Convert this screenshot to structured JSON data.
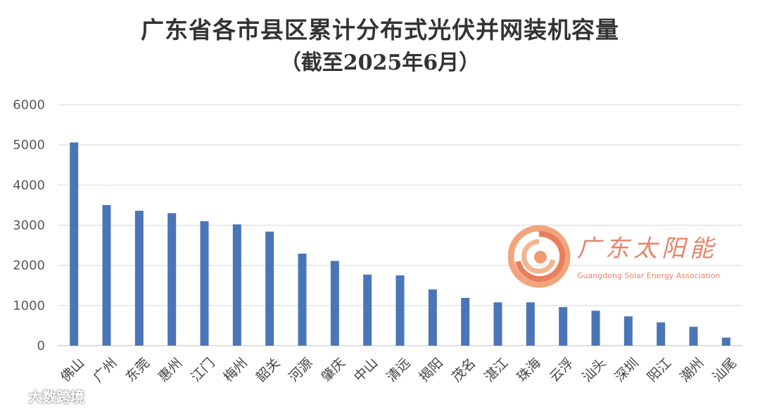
{
  "title": "广东省各市县区累计分布式光伏并网装机容量",
  "subtitle": "（截至2025年6月）",
  "chart_data": {
    "type": "bar",
    "title": "广东省各市县区累计分布式光伏并网装机容量",
    "subtitle": "（截至2025年6月）",
    "categories": [
      "佛山",
      "广州",
      "东莞",
      "惠州",
      "江门",
      "梅州",
      "韶关",
      "河源",
      "肇庆",
      "中山",
      "清远",
      "揭阳",
      "茂名",
      "湛江",
      "珠海",
      "云浮",
      "汕头",
      "深圳",
      "阳江",
      "潮州",
      "汕尾"
    ],
    "values": [
      5060,
      3500,
      3360,
      3300,
      3100,
      3020,
      2840,
      2290,
      2110,
      1770,
      1750,
      1400,
      1190,
      1080,
      1080,
      960,
      870,
      730,
      580,
      470,
      200
    ],
    "xlabel": "",
    "ylabel": "",
    "ylim": [
      0,
      6000
    ],
    "yticks": [
      0,
      1000,
      2000,
      3000,
      4000,
      5000,
      6000
    ],
    "grid": true,
    "bar_color": "#4a76b8",
    "grid_color": "#d9d9d9"
  },
  "logo": {
    "name_cn": "广东太阳能",
    "name_en": "Guangdong Solar Energy Association",
    "color": "#e8846a"
  },
  "watermark": {
    "text": "大数跨境"
  }
}
